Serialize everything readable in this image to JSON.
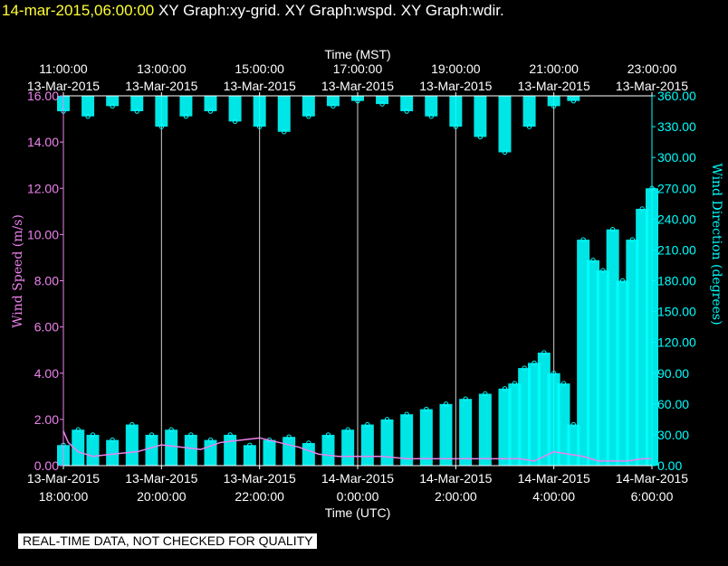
{
  "header": {
    "timestamp": "14-mar-2015,06:00:00",
    "titles": [
      "XY Graph:xy-grid.",
      "XY Graph:wspd.",
      "XY Graph:wdir."
    ]
  },
  "notice": "REAL-TIME DATA, NOT CHECKED FOR QUALITY",
  "colors": {
    "background": "#000000",
    "wind_speed": "#ee82ee",
    "wind_direction": "#00ffff",
    "axis": "#ffffff",
    "timestamp": "#ffff33"
  },
  "chart_data": {
    "type": "scatter",
    "top_axis": {
      "label": "Time (MST)",
      "ticks": [
        {
          "time": "11:00:00",
          "date": "13-Mar-2015"
        },
        {
          "time": "13:00:00",
          "date": "13-Mar-2015"
        },
        {
          "time": "15:00:00",
          "date": "13-Mar-2015"
        },
        {
          "time": "17:00:00",
          "date": "13-Mar-2015"
        },
        {
          "time": "19:00:00",
          "date": "13-Mar-2015"
        },
        {
          "time": "21:00:00",
          "date": "13-Mar-2015"
        },
        {
          "time": "23:00:00",
          "date": "13-Mar-2015"
        }
      ]
    },
    "bottom_axis": {
      "label": "Time (UTC)",
      "ticks": [
        {
          "date": "13-Mar-2015",
          "time": "18:00:00"
        },
        {
          "date": "13-Mar-2015",
          "time": "20:00:00"
        },
        {
          "date": "13-Mar-2015",
          "time": "22:00:00"
        },
        {
          "date": "14-Mar-2015",
          "time": "0:00:00"
        },
        {
          "date": "14-Mar-2015",
          "time": "2:00:00"
        },
        {
          "date": "14-Mar-2015",
          "time": "4:00:00"
        },
        {
          "date": "14-Mar-2015",
          "time": "6:00:00"
        }
      ],
      "range_hours_utc": [
        18,
        30
      ]
    },
    "left_axis": {
      "label": "Wind Speed (m/s)",
      "ylim": [
        0,
        16
      ],
      "ticks": [
        "0.00",
        "2.00",
        "4.00",
        "6.00",
        "8.00",
        "10.00",
        "12.00",
        "14.00",
        "16.00"
      ]
    },
    "right_axis": {
      "label": "Wind Direction (degrees)",
      "ylim": [
        0,
        360
      ],
      "ticks": [
        "0.00",
        "30.00",
        "60.00",
        "90.00",
        "120.00",
        "150.00",
        "180.00",
        "210.00",
        "240.00",
        "270.00",
        "300.00",
        "330.00",
        "360.00"
      ]
    },
    "grid": "vertical lines at each 2-hour tick",
    "series": [
      {
        "key": "wspd",
        "style": "line",
        "x": [
          18.0,
          18.1,
          18.3,
          18.6,
          19.0,
          19.5,
          20.0,
          20.4,
          20.8,
          21.2,
          21.6,
          22.0,
          22.4,
          22.8,
          23.2,
          23.6,
          24.0,
          24.5,
          25.0,
          25.5,
          26.0,
          26.5,
          27.0,
          27.3,
          27.6,
          28.0,
          28.3,
          28.6,
          28.9,
          29.2,
          29.5,
          29.8,
          30.0
        ],
        "values": [
          1.5,
          1.0,
          0.6,
          0.4,
          0.5,
          0.6,
          0.9,
          0.8,
          0.7,
          1.0,
          1.1,
          1.2,
          1.0,
          0.8,
          0.5,
          0.4,
          0.4,
          0.4,
          0.3,
          0.3,
          0.3,
          0.3,
          0.3,
          0.3,
          0.2,
          0.6,
          0.5,
          0.4,
          0.2,
          0.2,
          0.2,
          0.3,
          0.3
        ]
      },
      {
        "key": "wdir",
        "style": "scatter",
        "x": [
          18.0,
          18.3,
          18.6,
          19.0,
          19.4,
          19.8,
          20.2,
          20.6,
          21.0,
          21.4,
          21.8,
          22.2,
          22.6,
          23.0,
          23.4,
          23.8,
          24.2,
          24.6,
          25.0,
          25.4,
          25.8,
          26.2,
          26.6,
          27.0,
          27.2,
          27.4,
          27.6,
          27.8,
          28.0,
          28.2,
          28.4,
          28.6,
          28.8,
          29.0,
          29.2,
          29.4,
          29.6,
          29.8,
          30.0
        ],
        "values": [
          20,
          35,
          30,
          25,
          40,
          30,
          35,
          30,
          25,
          30,
          20,
          25,
          28,
          22,
          30,
          35,
          40,
          45,
          50,
          55,
          60,
          65,
          70,
          75,
          80,
          95,
          100,
          110,
          90,
          80,
          40,
          220,
          200,
          190,
          230,
          180,
          220,
          250,
          270
        ],
        "upper_band_x": [
          18.0,
          18.5,
          19.0,
          19.5,
          20.0,
          20.5,
          21.0,
          21.5,
          22.0,
          22.5,
          23.0,
          23.5,
          24.0,
          24.5,
          25.0,
          25.5,
          26.0,
          26.5,
          27.0,
          27.5,
          28.0,
          28.4
        ],
        "upper_band_values": [
          345,
          340,
          350,
          345,
          330,
          340,
          345,
          335,
          330,
          325,
          340,
          350,
          355,
          352,
          345,
          340,
          330,
          320,
          305,
          330,
          350,
          355
        ]
      }
    ]
  }
}
